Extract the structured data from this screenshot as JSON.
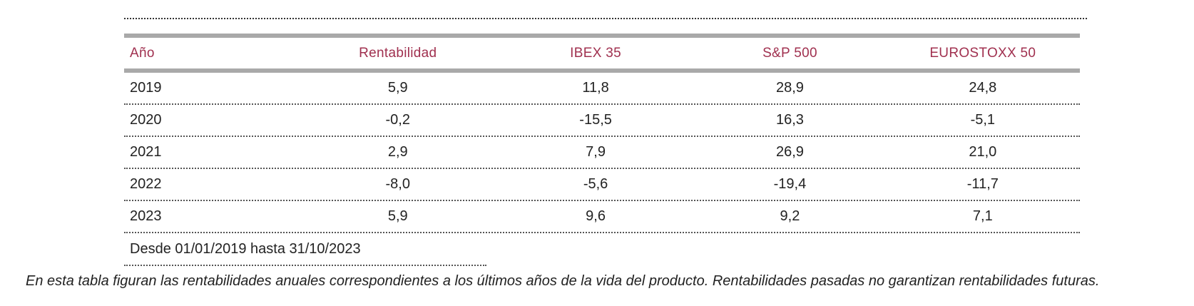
{
  "table": {
    "headers": [
      "Año",
      "Rentabilidad",
      "IBEX 35",
      "S&P 500",
      "EUROSTOXX 50"
    ],
    "rows": [
      [
        "2019",
        "5,9",
        "11,8",
        "28,9",
        "24,8"
      ],
      [
        "2020",
        "-0,2",
        "-15,5",
        "16,3",
        "-5,1"
      ],
      [
        "2021",
        "2,9",
        "7,9",
        "26,9",
        "21,0"
      ],
      [
        "2022",
        "-8,0",
        "-5,6",
        "-19,4",
        "-11,7"
      ],
      [
        "2023",
        "5,9",
        "9,6",
        "9,2",
        "7,1"
      ]
    ],
    "note": "Desde 01/01/2019 hasta 31/10/2023"
  },
  "disclaimer": "En esta tabla figuran las rentabilidades anuales correspondientes a los últimos años de la vida del producto. Rentabilidades pasadas no garantizan rentabilidades futuras.",
  "colors": {
    "header_text": "#a0304f",
    "header_rule": "#a9a9a9"
  }
}
